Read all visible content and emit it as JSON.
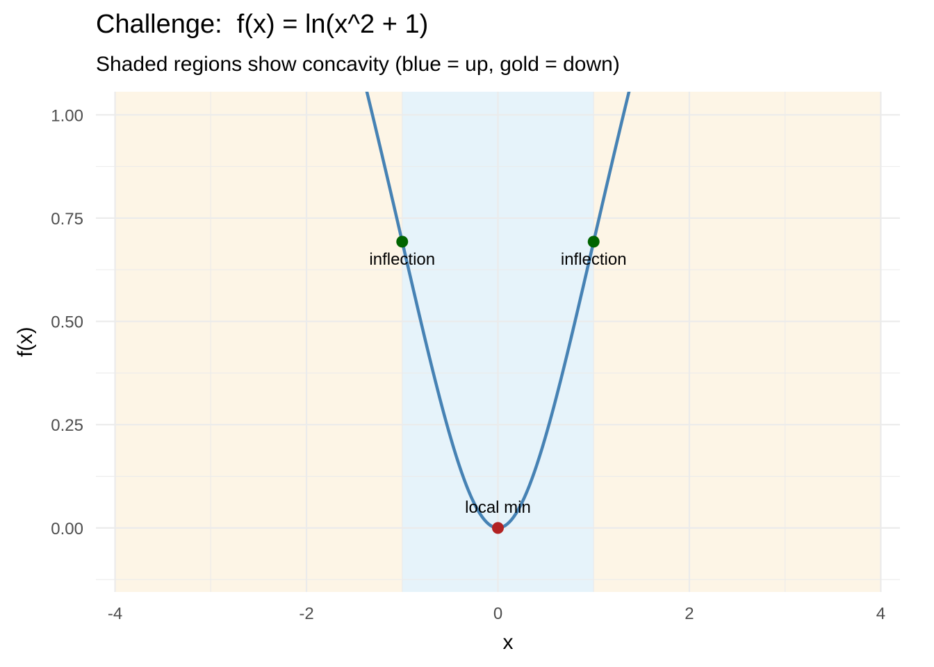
{
  "chart_data": {
    "type": "line",
    "title": "Challenge:  f(x) = ln(x^2 + 1)",
    "subtitle": "Shaded regions show concavity (blue = up, gold = down)",
    "xlabel": "x",
    "ylabel": "f(x)",
    "xlim": [
      -4.2,
      4.2
    ],
    "ylim": [
      -0.155,
      1.056
    ],
    "x_ticks": [
      -4,
      -2,
      0,
      2,
      4
    ],
    "x_tick_labels": [
      "-4",
      "-2",
      "0",
      "2",
      "4"
    ],
    "y_ticks": [
      0,
      0.25,
      0.5,
      0.75,
      1
    ],
    "y_tick_labels": [
      "0.00",
      "0.25",
      "0.50",
      "0.75",
      "1.00"
    ],
    "grid": true,
    "function": "ln(x^2 + 1)",
    "x_range": [
      -4,
      4
    ],
    "line_color": "#4682b4",
    "regions": [
      {
        "concavity": "down",
        "x": [
          -4,
          -1
        ],
        "color": "#fdf5e6"
      },
      {
        "concavity": "up",
        "x": [
          -1,
          1
        ],
        "color": "#e6f3fa"
      },
      {
        "concavity": "down",
        "x": [
          1,
          4
        ],
        "color": "#fdf5e6"
      }
    ],
    "points": [
      {
        "x": -1,
        "y": 0.693,
        "label": "inflection",
        "color": "#006400",
        "label_pos": "below"
      },
      {
        "x": 1,
        "y": 0.693,
        "label": "inflection",
        "color": "#006400",
        "label_pos": "below"
      },
      {
        "x": 0,
        "y": 0,
        "label": "local min",
        "color": "#b22222",
        "label_pos": "above"
      }
    ]
  }
}
